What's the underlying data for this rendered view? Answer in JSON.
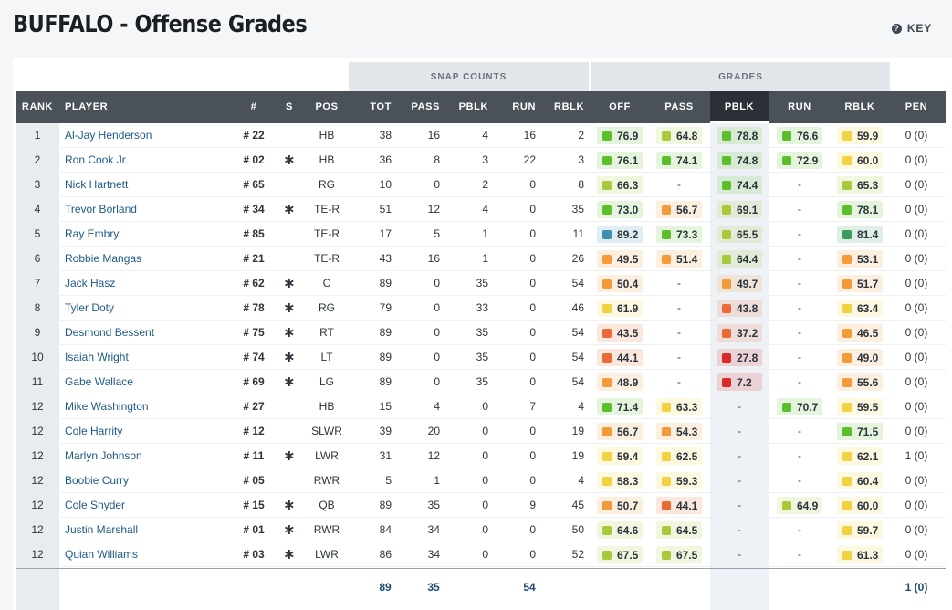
{
  "page": {
    "title": "BUFFALO - Offense Grades",
    "key_label": "KEY",
    "key_icon": "question-icon"
  },
  "groups": {
    "snap_counts": "SNAP COUNTS",
    "grades": "GRADES"
  },
  "columns": {
    "rank": "RANK",
    "player": "PLAYER",
    "jersey": "#",
    "s": "S",
    "pos": "POS",
    "tot": "TOT",
    "pass": "PASS",
    "pblk": "PBLK",
    "run": "RUN",
    "rblk": "RBLK",
    "off": "OFF",
    "g_pass": "PASS",
    "g_pblk": "PBLK",
    "g_run": "RUN",
    "g_rblk": "RBLK",
    "pen": "PEN"
  },
  "grade_colors": {
    "dark_green": "#3f9a5e",
    "green": "#5cbf2a",
    "lime": "#a9c93b",
    "yellow": "#f2d240",
    "orange": "#f39b3a",
    "red_orange": "#ea6a38",
    "red": "#d9292b",
    "blue": "#3d8eb0"
  },
  "rows": [
    {
      "rank": "1",
      "player": "Al-Jay Henderson",
      "jersey": "# 22",
      "starter": false,
      "pos": "HB",
      "tot": "38",
      "pass": "16",
      "pblk": "4",
      "run": "16",
      "rblk": "2",
      "off": "76.9",
      "g_pass": "64.8",
      "g_pblk": "78.8",
      "g_run": "76.6",
      "g_rblk": "59.9",
      "pen": "0 (0)"
    },
    {
      "rank": "2",
      "player": "Ron Cook Jr.",
      "jersey": "# 02",
      "starter": true,
      "pos": "HB",
      "tot": "36",
      "pass": "8",
      "pblk": "3",
      "run": "22",
      "rblk": "3",
      "off": "76.1",
      "g_pass": "74.1",
      "g_pblk": "74.8",
      "g_run": "72.9",
      "g_rblk": "60.0",
      "pen": "0 (0)"
    },
    {
      "rank": "3",
      "player": "Nick Hartnett",
      "jersey": "# 65",
      "starter": false,
      "pos": "RG",
      "tot": "10",
      "pass": "0",
      "pblk": "2",
      "run": "0",
      "rblk": "8",
      "off": "66.3",
      "g_pass": "-",
      "g_pblk": "74.4",
      "g_run": "-",
      "g_rblk": "65.3",
      "pen": "0 (0)"
    },
    {
      "rank": "4",
      "player": "Trevor Borland",
      "jersey": "# 34",
      "starter": true,
      "pos": "TE-R",
      "tot": "51",
      "pass": "12",
      "pblk": "4",
      "run": "0",
      "rblk": "35",
      "off": "73.0",
      "g_pass": "56.7",
      "g_pblk": "69.1",
      "g_run": "-",
      "g_rblk": "78.1",
      "pen": "0 (0)"
    },
    {
      "rank": "5",
      "player": "Ray Embry",
      "jersey": "# 85",
      "starter": false,
      "pos": "TE-R",
      "tot": "17",
      "pass": "5",
      "pblk": "1",
      "run": "0",
      "rblk": "11",
      "off": "89.2",
      "g_pass": "73.3",
      "g_pblk": "65.5",
      "g_run": "-",
      "g_rblk": "81.4",
      "pen": "0 (0)"
    },
    {
      "rank": "6",
      "player": "Robbie Mangas",
      "jersey": "# 21",
      "starter": false,
      "pos": "TE-R",
      "tot": "43",
      "pass": "16",
      "pblk": "1",
      "run": "0",
      "rblk": "26",
      "off": "49.5",
      "g_pass": "51.4",
      "g_pblk": "64.4",
      "g_run": "-",
      "g_rblk": "53.1",
      "pen": "0 (0)"
    },
    {
      "rank": "7",
      "player": "Jack Hasz",
      "jersey": "# 62",
      "starter": true,
      "pos": "C",
      "tot": "89",
      "pass": "0",
      "pblk": "35",
      "run": "0",
      "rblk": "54",
      "off": "50.4",
      "g_pass": "-",
      "g_pblk": "49.7",
      "g_run": "-",
      "g_rblk": "51.7",
      "pen": "0 (0)"
    },
    {
      "rank": "8",
      "player": "Tyler Doty",
      "jersey": "# 78",
      "starter": true,
      "pos": "RG",
      "tot": "79",
      "pass": "0",
      "pblk": "33",
      "run": "0",
      "rblk": "46",
      "off": "61.9",
      "g_pass": "-",
      "g_pblk": "43.8",
      "g_run": "-",
      "g_rblk": "63.4",
      "pen": "0 (0)"
    },
    {
      "rank": "9",
      "player": "Desmond Bessent",
      "jersey": "# 75",
      "starter": true,
      "pos": "RT",
      "tot": "89",
      "pass": "0",
      "pblk": "35",
      "run": "0",
      "rblk": "54",
      "off": "43.5",
      "g_pass": "-",
      "g_pblk": "37.2",
      "g_run": "-",
      "g_rblk": "46.5",
      "pen": "0 (0)"
    },
    {
      "rank": "10",
      "player": "Isaiah Wright",
      "jersey": "# 74",
      "starter": true,
      "pos": "LT",
      "tot": "89",
      "pass": "0",
      "pblk": "35",
      "run": "0",
      "rblk": "54",
      "off": "44.1",
      "g_pass": "-",
      "g_pblk": "27.8",
      "g_run": "-",
      "g_rblk": "49.0",
      "pen": "0 (0)"
    },
    {
      "rank": "11",
      "player": "Gabe Wallace",
      "jersey": "# 69",
      "starter": true,
      "pos": "LG",
      "tot": "89",
      "pass": "0",
      "pblk": "35",
      "run": "0",
      "rblk": "54",
      "off": "48.9",
      "g_pass": "-",
      "g_pblk": "7.2",
      "g_run": "-",
      "g_rblk": "55.6",
      "pen": "0 (0)"
    },
    {
      "rank": "12",
      "player": "Mike Washington",
      "jersey": "# 27",
      "starter": false,
      "pos": "HB",
      "tot": "15",
      "pass": "4",
      "pblk": "0",
      "run": "7",
      "rblk": "4",
      "off": "71.4",
      "g_pass": "63.3",
      "g_pblk": "-",
      "g_run": "70.7",
      "g_rblk": "59.5",
      "pen": "0 (0)"
    },
    {
      "rank": "12",
      "player": "Cole Harrity",
      "jersey": "# 12",
      "starter": false,
      "pos": "SLWR",
      "tot": "39",
      "pass": "20",
      "pblk": "0",
      "run": "0",
      "rblk": "19",
      "off": "56.7",
      "g_pass": "54.3",
      "g_pblk": "-",
      "g_run": "-",
      "g_rblk": "71.5",
      "pen": "0 (0)"
    },
    {
      "rank": "12",
      "player": "Marlyn Johnson",
      "jersey": "# 11",
      "starter": true,
      "pos": "LWR",
      "tot": "31",
      "pass": "12",
      "pblk": "0",
      "run": "0",
      "rblk": "19",
      "off": "59.4",
      "g_pass": "62.5",
      "g_pblk": "-",
      "g_run": "-",
      "g_rblk": "62.1",
      "pen": "1 (0)"
    },
    {
      "rank": "12",
      "player": "Boobie Curry",
      "jersey": "# 05",
      "starter": false,
      "pos": "RWR",
      "tot": "5",
      "pass": "1",
      "pblk": "0",
      "run": "0",
      "rblk": "4",
      "off": "58.3",
      "g_pass": "59.3",
      "g_pblk": "-",
      "g_run": "-",
      "g_rblk": "60.4",
      "pen": "0 (0)"
    },
    {
      "rank": "12",
      "player": "Cole Snyder",
      "jersey": "# 15",
      "starter": true,
      "pos": "QB",
      "tot": "89",
      "pass": "35",
      "pblk": "0",
      "run": "9",
      "rblk": "45",
      "off": "50.7",
      "g_pass": "44.1",
      "g_pblk": "-",
      "g_run": "64.9",
      "g_rblk": "60.0",
      "pen": "0 (0)"
    },
    {
      "rank": "12",
      "player": "Justin Marshall",
      "jersey": "# 01",
      "starter": true,
      "pos": "RWR",
      "tot": "84",
      "pass": "34",
      "pblk": "0",
      "run": "0",
      "rblk": "50",
      "off": "64.6",
      "g_pass": "64.5",
      "g_pblk": "-",
      "g_run": "-",
      "g_rblk": "59.7",
      "pen": "0 (0)"
    },
    {
      "rank": "12",
      "player": "Quian Williams",
      "jersey": "# 03",
      "starter": true,
      "pos": "LWR",
      "tot": "86",
      "pass": "34",
      "pblk": "0",
      "run": "0",
      "rblk": "52",
      "off": "67.5",
      "g_pass": "67.5",
      "g_pblk": "-",
      "g_run": "-",
      "g_rblk": "61.3",
      "pen": "0 (0)"
    }
  ],
  "totals": {
    "tot": "89",
    "pass": "35",
    "run": "54",
    "pen": "1 (0)"
  }
}
